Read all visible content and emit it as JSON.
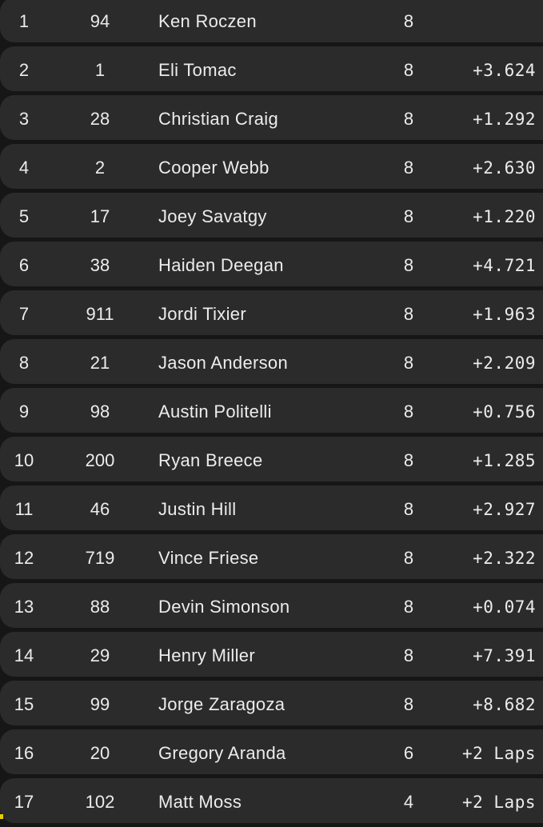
{
  "results": [
    {
      "pos": "1",
      "number": "94",
      "rider": "Ken Roczen",
      "laps": "8",
      "gap": ""
    },
    {
      "pos": "2",
      "number": "1",
      "rider": "Eli Tomac",
      "laps": "8",
      "gap": "+3.624"
    },
    {
      "pos": "3",
      "number": "28",
      "rider": "Christian Craig",
      "laps": "8",
      "gap": "+1.292"
    },
    {
      "pos": "4",
      "number": "2",
      "rider": "Cooper Webb",
      "laps": "8",
      "gap": "+2.630"
    },
    {
      "pos": "5",
      "number": "17",
      "rider": "Joey Savatgy",
      "laps": "8",
      "gap": "+1.220"
    },
    {
      "pos": "6",
      "number": "38",
      "rider": "Haiden Deegan",
      "laps": "8",
      "gap": "+4.721"
    },
    {
      "pos": "7",
      "number": "911",
      "rider": "Jordi Tixier",
      "laps": "8",
      "gap": "+1.963"
    },
    {
      "pos": "8",
      "number": "21",
      "rider": "Jason Anderson",
      "laps": "8",
      "gap": "+2.209"
    },
    {
      "pos": "9",
      "number": "98",
      "rider": "Austin Politelli",
      "laps": "8",
      "gap": "+0.756"
    },
    {
      "pos": "10",
      "number": "200",
      "rider": "Ryan Breece",
      "laps": "8",
      "gap": "+1.285"
    },
    {
      "pos": "11",
      "number": "46",
      "rider": "Justin Hill",
      "laps": "8",
      "gap": "+2.927"
    },
    {
      "pos": "12",
      "number": "719",
      "rider": "Vince Friese",
      "laps": "8",
      "gap": "+2.322"
    },
    {
      "pos": "13",
      "number": "88",
      "rider": "Devin Simonson",
      "laps": "8",
      "gap": "+0.074"
    },
    {
      "pos": "14",
      "number": "29",
      "rider": "Henry Miller",
      "laps": "8",
      "gap": "+7.391"
    },
    {
      "pos": "15",
      "number": "99",
      "rider": "Jorge Zaragoza",
      "laps": "8",
      "gap": "+8.682"
    },
    {
      "pos": "16",
      "number": "20",
      "rider": "Gregory Aranda",
      "laps": "6",
      "gap": "+2 Laps"
    },
    {
      "pos": "17",
      "number": "102",
      "rider": "Matt Moss",
      "laps": "4",
      "gap": "+2 Laps"
    }
  ]
}
